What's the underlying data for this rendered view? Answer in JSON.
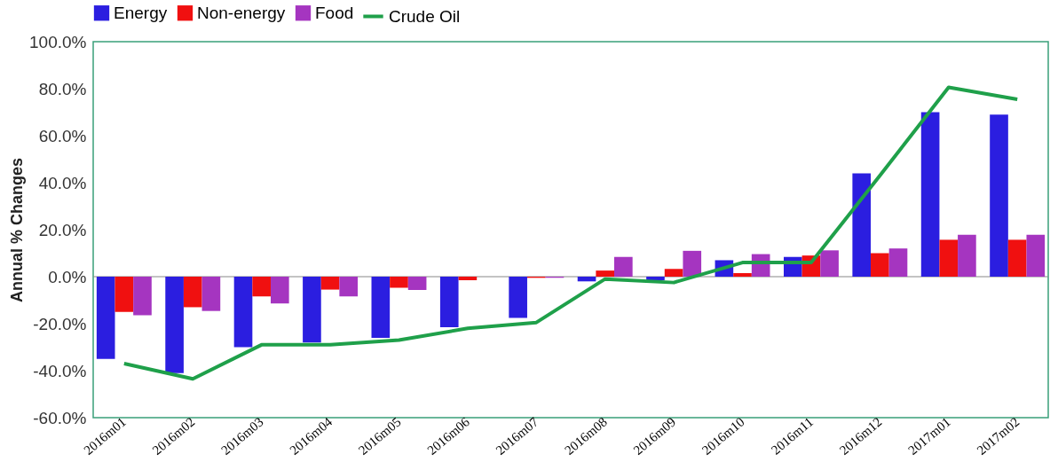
{
  "chart_data": {
    "type": "bar",
    "ylabel": "Annual % Changes",
    "categories": [
      "2016m01",
      "2016m02",
      "2016m03",
      "2016m04",
      "2016m05",
      "2016m06",
      "2016m07",
      "2016m08",
      "2016m09",
      "2016m10",
      "2016m11",
      "2016m12",
      "2017m01",
      "2017m02"
    ],
    "series": [
      {
        "name": "Energy",
        "color": "#2b1ee0",
        "values": [
          -35,
          -41,
          -30,
          -28,
          -26,
          -21.5,
          -17.5,
          -2,
          -1.5,
          7,
          8.4,
          44,
          70,
          69
        ]
      },
      {
        "name": "Non-energy",
        "color": "#f01010",
        "values": [
          -15,
          -13,
          -8.4,
          -5.5,
          -4.7,
          -1.5,
          -0.5,
          2.6,
          3.3,
          1.5,
          9,
          10,
          15.7,
          15.7
        ]
      },
      {
        "name": "Food",
        "color": "#a535c0",
        "values": [
          -16.4,
          -14.6,
          -11.4,
          -8.4,
          -5.7,
          0,
          -0.5,
          8.4,
          11,
          9.6,
          11.2,
          12,
          17.8,
          17.8
        ]
      },
      {
        "name": "Crude Oil",
        "type": "line",
        "color": "#1fa04a",
        "values": [
          -37,
          -43.5,
          -29,
          -29,
          -27,
          -22,
          -19.5,
          -1,
          -2.5,
          6,
          6,
          43,
          80.6,
          75.5
        ]
      }
    ],
    "ylim": [
      -60,
      100
    ],
    "yticks": [
      {
        "value": -60,
        "label": "-60.0%"
      },
      {
        "value": -40,
        "label": "-40.0%"
      },
      {
        "value": -20,
        "label": "-20.0%"
      },
      {
        "value": 0,
        "label": "0.0%"
      },
      {
        "value": 20,
        "label": "20.0%"
      },
      {
        "value": 40,
        "label": "40.0%"
      },
      {
        "value": 60,
        "label": "60.0%"
      },
      {
        "value": 80,
        "label": "80.0%"
      },
      {
        "value": 100,
        "label": "100.0%"
      }
    ],
    "ref_lines": [
      {
        "axis": "y",
        "value": 0,
        "color": "#888888"
      }
    ],
    "grid": false,
    "legend": "top"
  }
}
